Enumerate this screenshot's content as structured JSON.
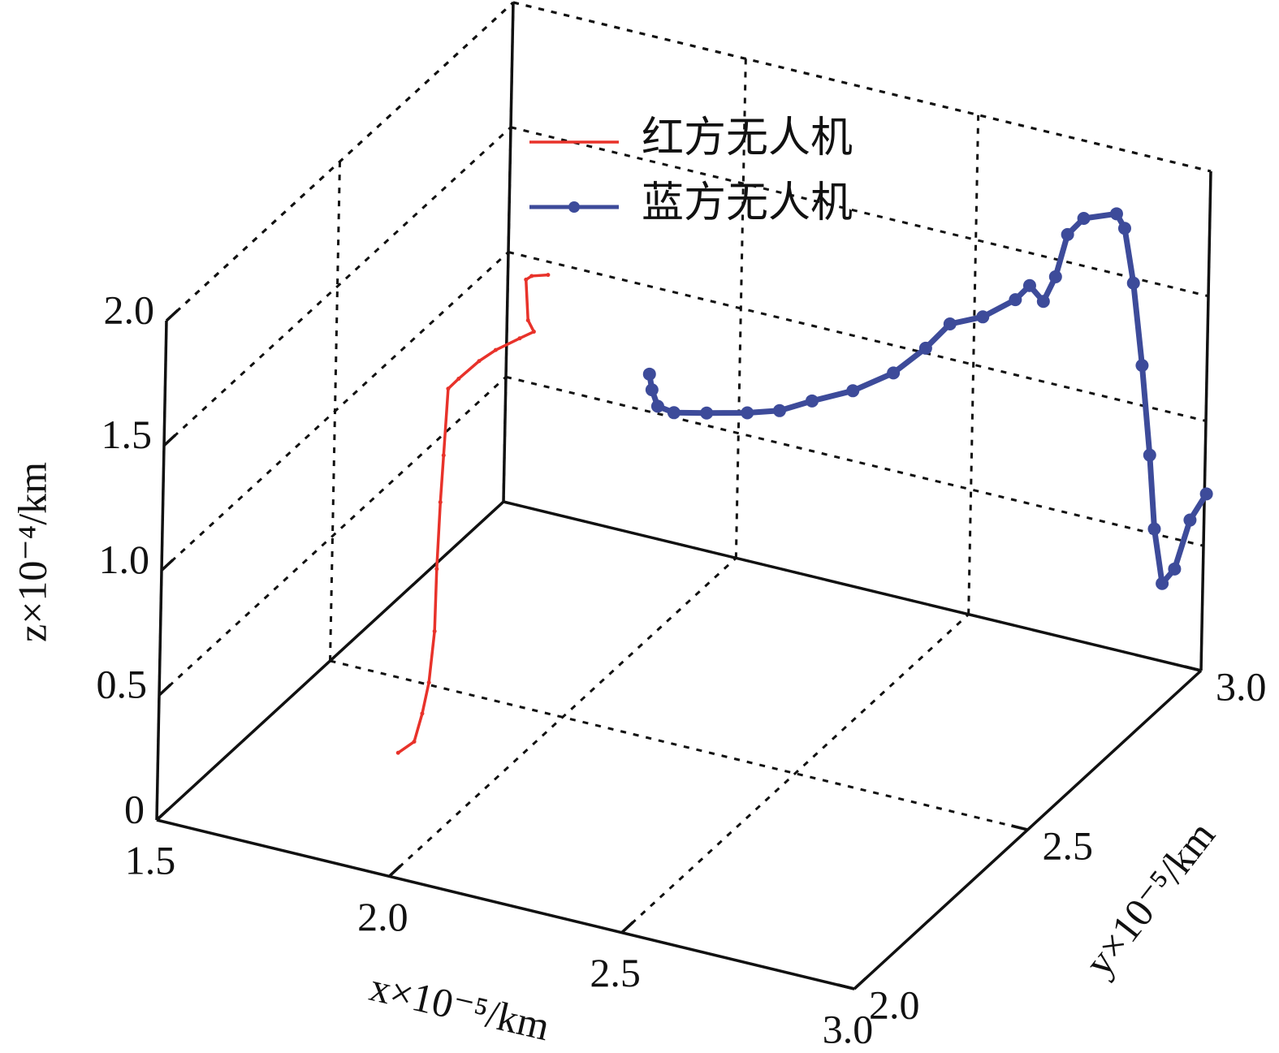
{
  "chart_data": {
    "type": "line3d",
    "xlabel": "x×10⁻⁵/km",
    "ylabel": "y×10⁻⁵/km",
    "zlabel": "z×10⁻⁴/km",
    "xlim": [
      1.5,
      3.0
    ],
    "ylim": [
      2.0,
      3.0
    ],
    "zlim": [
      0,
      2.0
    ],
    "xticks": [
      1.5,
      {
        "value": 2,
        "label": "2.0"
      },
      2.5,
      {
        "value": 3,
        "label": "3.0"
      }
    ],
    "yticks": [
      {
        "value": 2,
        "label": "2.0"
      },
      2.5,
      {
        "value": 3,
        "label": "3.0"
      }
    ],
    "zticks": [
      0,
      0.5,
      {
        "value": 1,
        "label": "1.0"
      },
      1.5,
      {
        "value": 2,
        "label": "2.0"
      }
    ],
    "grid": true,
    "series": [
      {
        "name": "红方无人机",
        "color": "#e8322a",
        "marker": false,
        "x": [
          1.868,
          1.902,
          1.918,
          1.931,
          1.941,
          1.943,
          1.948,
          1.953,
          1.96,
          1.982,
          2.025,
          2.06,
          2.111,
          2.141,
          2.128,
          2.122,
          2.134,
          2.169
        ],
        "y": [
          2.2,
          2.2,
          2.2,
          2.2,
          2.2,
          2.2,
          2.2,
          2.2,
          2.2,
          2.2,
          2.2,
          2.2,
          2.2,
          2.2,
          2.2,
          2.2,
          2.2,
          2.2
        ],
        "z": [
          0.18,
          0.24,
          0.36,
          0.49,
          0.7,
          0.95,
          1.22,
          1.41,
          1.68,
          1.73,
          1.82,
          1.88,
          1.95,
          1.99,
          2.03,
          2.19,
          2.21,
          2.23
        ]
      },
      {
        "name": "蓝方无人机",
        "color": "#3d4b9a",
        "marker": true,
        "x": [
          1.88,
          1.886,
          1.899,
          1.934,
          2.004,
          2.091,
          2.16,
          2.229,
          2.316,
          2.402,
          2.47,
          2.521,
          2.591,
          2.66,
          2.69,
          2.72,
          2.745,
          2.769,
          2.803,
          2.873,
          2.891,
          2.912,
          2.934,
          2.954,
          2.967,
          2.986,
          3.012,
          3.043,
          3.077
        ],
        "y": [
          2.9,
          2.9,
          2.9,
          2.9,
          2.9,
          2.9,
          2.9,
          2.9,
          2.9,
          2.9,
          2.9,
          2.9,
          2.9,
          2.9,
          2.9,
          2.9,
          2.9,
          2.9,
          2.9,
          2.9,
          2.9,
          2.9,
          2.9,
          2.9,
          2.9,
          2.9,
          2.9,
          2.9,
          2.9
        ],
        "z": [
          0.81,
          0.75,
          0.69,
          0.68,
          0.71,
          0.75,
          0.79,
          0.86,
          0.94,
          1.05,
          1.18,
          1.3,
          1.36,
          1.46,
          1.53,
          1.48,
          1.59,
          1.77,
          1.85,
          1.9,
          1.85,
          1.64,
          1.32,
          0.97,
          0.68,
          0.47,
          0.54,
          0.75,
          0.87
        ]
      }
    ]
  }
}
